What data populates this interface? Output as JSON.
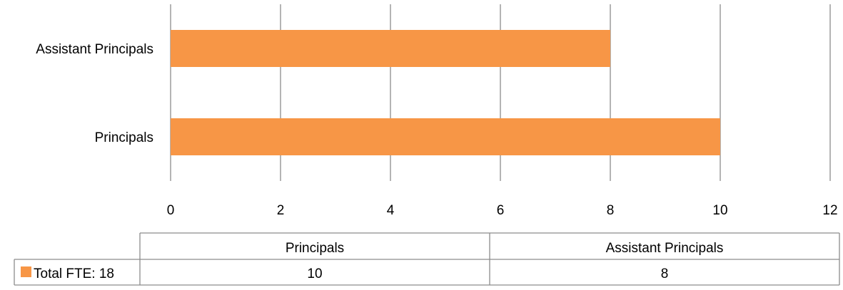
{
  "chart_data": {
    "type": "bar",
    "orientation": "horizontal",
    "categories": [
      "Principals",
      "Assistant Principals"
    ],
    "series": [
      {
        "name": "Total FTE: 18",
        "values": [
          10,
          8
        ],
        "color": "#F79646"
      }
    ],
    "xlim": [
      0,
      12
    ],
    "xticks": [
      0,
      2,
      4,
      6,
      8,
      10,
      12
    ],
    "grid": true,
    "title": "",
    "xlabel": "",
    "ylabel": "",
    "data_table": {
      "headers": [
        "Principals",
        "Assistant Principals"
      ],
      "rows": [
        {
          "label": "Total FTE: 18",
          "values": [
            "10",
            "8"
          ]
        }
      ]
    }
  }
}
